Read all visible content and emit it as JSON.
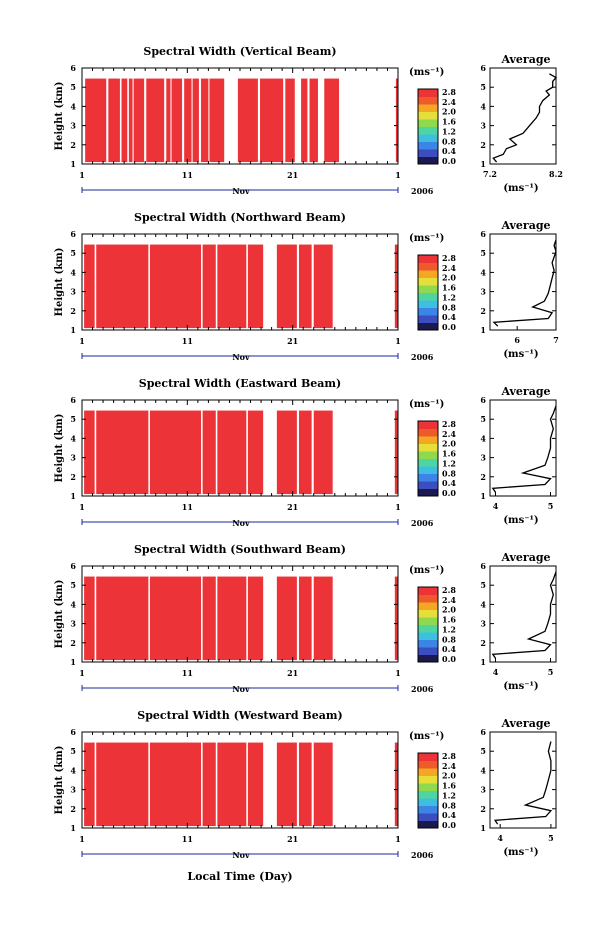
{
  "xlabel": "Local Time (Day)",
  "colorbar": {
    "unit": "(ms⁻¹)",
    "ticks": [
      "0.0",
      "0.4",
      "0.8",
      "1.2",
      "1.6",
      "2.0",
      "2.4",
      "2.8"
    ],
    "colors": [
      "#1a1a50",
      "#3b4dbf",
      "#3a85e6",
      "#3fbfe0",
      "#4fd6a0",
      "#8fd94f",
      "#e6df3a",
      "#f5a623",
      "#ef5a2a",
      "#ec3338"
    ]
  },
  "chart_data": [
    {
      "type": "heatmap",
      "title": "Spectral Width (Vertical Beam)",
      "ylabel": "Height (km)",
      "ylim": [
        1,
        6
      ],
      "yticks": [
        "1",
        "2",
        "3",
        "4",
        "5",
        "6"
      ],
      "xlim": [
        1,
        31
      ],
      "xticks": [
        "1",
        "11",
        "21",
        "1"
      ],
      "month": "Nov",
      "year": "2006",
      "fill_color": "#ec3338",
      "data_top_km": 5.45,
      "data_bottom_km": 1.1,
      "data_segments": [
        [
          1.3,
          14.5
        ],
        [
          15.8,
          21.2
        ],
        [
          21.8,
          23.4
        ],
        [
          24.0,
          25.4
        ],
        [
          30.8,
          31.0
        ]
      ],
      "gaps": [
        [
          3.3,
          3.5
        ],
        [
          4.6,
          4.75
        ],
        [
          5.3,
          5.45
        ],
        [
          5.8,
          5.9
        ],
        [
          6.9,
          7.1
        ],
        [
          8.8,
          9.0
        ],
        [
          9.4,
          9.5
        ],
        [
          10.5,
          10.7
        ],
        [
          11.4,
          11.5
        ],
        [
          12.1,
          12.3
        ],
        [
          13.0,
          13.1
        ],
        [
          17.7,
          17.9
        ],
        [
          20.1,
          20.3
        ],
        [
          22.4,
          22.6
        ],
        [
          23.6,
          23.7
        ]
      ],
      "profile": {
        "title": "Average",
        "xlabel": "(ms⁻¹)",
        "xlim": [
          7.2,
          8.2
        ],
        "xticks": [
          "7.2",
          "8.2"
        ],
        "ylim": [
          1,
          6
        ],
        "yticks": [
          "1",
          "2",
          "3",
          "4",
          "5",
          "6"
        ],
        "x": [
          7.3,
          7.25,
          7.4,
          7.45,
          7.6,
          7.5,
          7.7,
          7.8,
          7.9,
          7.95,
          7.95,
          8.0,
          8.1,
          8.05,
          8.15,
          8.15,
          8.2,
          8.1
        ],
        "y": [
          1.1,
          1.3,
          1.5,
          1.8,
          2.0,
          2.3,
          2.6,
          3.0,
          3.4,
          3.7,
          4.0,
          4.3,
          4.6,
          4.8,
          5.0,
          5.3,
          5.5,
          5.7
        ]
      }
    },
    {
      "type": "heatmap",
      "title": "Spectral Width (Northward Beam)",
      "ylabel": "Height (km)",
      "ylim": [
        1,
        6
      ],
      "yticks": [
        "1",
        "2",
        "3",
        "4",
        "5",
        "6"
      ],
      "xlim": [
        1,
        31
      ],
      "xticks": [
        "1",
        "11",
        "21",
        "1"
      ],
      "month": "Nov",
      "year": "2006",
      "fill_color": "#ec3338",
      "data_top_km": 5.45,
      "data_bottom_km": 1.1,
      "data_segments": [
        [
          1.2,
          18.2
        ],
        [
          19.5,
          24.8
        ],
        [
          30.7,
          31.0
        ]
      ],
      "gaps": [
        [
          2.2,
          2.35
        ],
        [
          7.3,
          7.45
        ],
        [
          12.3,
          12.45
        ],
        [
          13.7,
          13.85
        ],
        [
          16.6,
          16.75
        ],
        [
          21.4,
          21.6
        ],
        [
          22.8,
          23.0
        ]
      ],
      "profile": {
        "title": "Average",
        "xlabel": "(ms⁻¹)",
        "xlim": [
          5.3,
          7.0
        ],
        "xticks": [
          "6",
          "7"
        ],
        "ylim": [
          1,
          6
        ],
        "yticks": [
          "1",
          "2",
          "3",
          "4",
          "5",
          "6"
        ],
        "x": [
          5.5,
          5.4,
          6.8,
          6.9,
          6.4,
          6.7,
          6.8,
          6.85,
          6.9,
          6.95,
          6.9,
          6.95,
          7.0,
          6.95,
          7.0
        ],
        "y": [
          1.2,
          1.4,
          1.6,
          1.9,
          2.2,
          2.5,
          2.9,
          3.3,
          3.7,
          4.1,
          4.5,
          4.8,
          5.1,
          5.4,
          5.7
        ]
      }
    },
    {
      "type": "heatmap",
      "title": "Spectral Width (Eastward Beam)",
      "ylabel": "Height (km)",
      "ylim": [
        1,
        6
      ],
      "yticks": [
        "1",
        "2",
        "3",
        "4",
        "5",
        "6"
      ],
      "xlim": [
        1,
        31
      ],
      "xticks": [
        "1",
        "11",
        "21",
        "1"
      ],
      "month": "Nov",
      "year": "2006",
      "fill_color": "#ec3338",
      "data_top_km": 5.45,
      "data_bottom_km": 1.1,
      "data_segments": [
        [
          1.2,
          18.2
        ],
        [
          19.5,
          24.8
        ],
        [
          30.7,
          31.0
        ]
      ],
      "gaps": [
        [
          2.2,
          2.35
        ],
        [
          7.3,
          7.45
        ],
        [
          12.3,
          12.45
        ],
        [
          13.7,
          13.85
        ],
        [
          16.6,
          16.75
        ],
        [
          21.4,
          21.6
        ],
        [
          22.8,
          23.0
        ]
      ],
      "profile": {
        "title": "Average",
        "xlabel": "(ms⁻¹)",
        "xlim": [
          3.9,
          5.1
        ],
        "xticks": [
          "4",
          "5"
        ],
        "ylim": [
          1,
          6
        ],
        "yticks": [
          "1",
          "2",
          "3",
          "4",
          "5",
          "6"
        ],
        "x": [
          4.0,
          3.95,
          4.9,
          5.0,
          4.5,
          4.9,
          4.95,
          5.0,
          5.0,
          5.05,
          5.0,
          5.05,
          5.1
        ],
        "y": [
          1.2,
          1.4,
          1.6,
          1.9,
          2.2,
          2.6,
          3.0,
          3.5,
          4.0,
          4.5,
          5.0,
          5.3,
          5.7
        ]
      }
    },
    {
      "type": "heatmap",
      "title": "Spectral Width (Southward Beam)",
      "ylabel": "Height (km)",
      "ylim": [
        1,
        6
      ],
      "yticks": [
        "1",
        "2",
        "3",
        "4",
        "5",
        "6"
      ],
      "xlim": [
        1,
        31
      ],
      "xticks": [
        "1",
        "11",
        "21",
        "1"
      ],
      "month": "Nov",
      "year": "2006",
      "fill_color": "#ec3338",
      "data_top_km": 5.45,
      "data_bottom_km": 1.1,
      "data_segments": [
        [
          1.2,
          18.2
        ],
        [
          19.5,
          24.8
        ],
        [
          30.7,
          31.0
        ]
      ],
      "gaps": [
        [
          2.2,
          2.35
        ],
        [
          7.3,
          7.45
        ],
        [
          12.3,
          12.45
        ],
        [
          13.7,
          13.85
        ],
        [
          16.6,
          16.75
        ],
        [
          21.4,
          21.6
        ],
        [
          22.8,
          23.0
        ]
      ],
      "profile": {
        "title": "Average",
        "xlabel": "(ms⁻¹)",
        "xlim": [
          3.9,
          5.1
        ],
        "xticks": [
          "4",
          "5"
        ],
        "ylim": [
          1,
          6
        ],
        "yticks": [
          "1",
          "2",
          "3",
          "4",
          "5",
          "6"
        ],
        "x": [
          4.0,
          3.95,
          4.9,
          5.0,
          4.6,
          4.9,
          4.95,
          5.0,
          5.0,
          5.05,
          5.0,
          5.05,
          5.1
        ],
        "y": [
          1.2,
          1.4,
          1.6,
          1.9,
          2.2,
          2.6,
          3.0,
          3.5,
          4.0,
          4.5,
          5.0,
          5.3,
          5.7
        ]
      }
    },
    {
      "type": "heatmap",
      "title": "Spectral Width (Westward Beam)",
      "ylabel": "Height (km)",
      "ylim": [
        1,
        6
      ],
      "yticks": [
        "1",
        "2",
        "3",
        "4",
        "5",
        "6"
      ],
      "xlim": [
        1,
        31
      ],
      "xticks": [
        "1",
        "11",
        "21",
        "1"
      ],
      "month": "Nov",
      "year": "2006",
      "fill_color": "#ec3338",
      "data_top_km": 5.45,
      "data_bottom_km": 1.1,
      "data_segments": [
        [
          1.2,
          18.2
        ],
        [
          19.5,
          24.8
        ],
        [
          30.7,
          31.0
        ]
      ],
      "gaps": [
        [
          2.2,
          2.35
        ],
        [
          7.3,
          7.45
        ],
        [
          12.3,
          12.45
        ],
        [
          13.7,
          13.85
        ],
        [
          16.6,
          16.75
        ],
        [
          21.4,
          21.6
        ],
        [
          22.8,
          23.0
        ]
      ],
      "profile": {
        "title": "Average",
        "xlabel": "(ms⁻¹)",
        "xlim": [
          3.8,
          5.1
        ],
        "xticks": [
          "4",
          "5"
        ],
        "ylim": [
          1,
          6
        ],
        "yticks": [
          "1",
          "2",
          "3",
          "4",
          "5",
          "6"
        ],
        "x": [
          3.95,
          3.9,
          4.9,
          5.0,
          4.5,
          4.85,
          4.9,
          4.95,
          5.0,
          5.0,
          4.95,
          5.0
        ],
        "y": [
          1.2,
          1.4,
          1.6,
          1.9,
          2.2,
          2.6,
          3.0,
          3.5,
          4.0,
          4.5,
          5.0,
          5.5
        ]
      }
    }
  ]
}
